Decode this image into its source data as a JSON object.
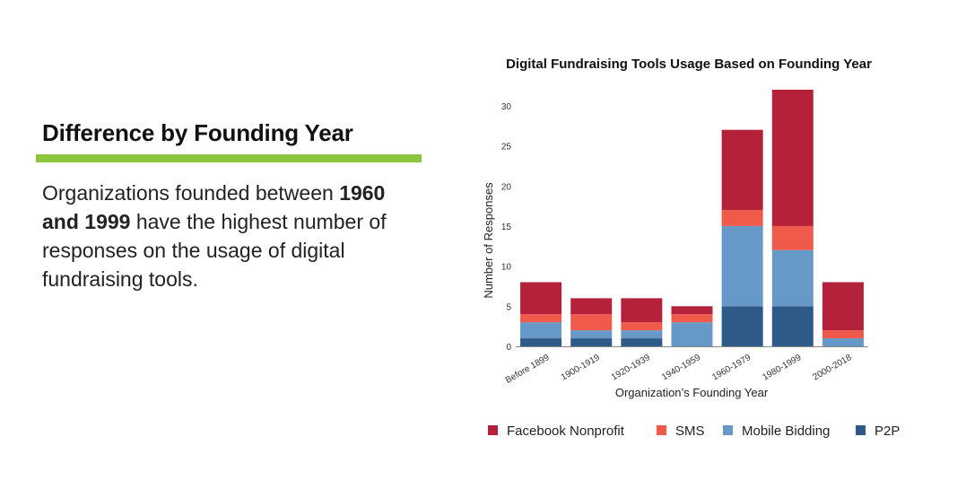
{
  "slide": {
    "heading": "Difference by Founding Year",
    "accent_color": "#8cc63f",
    "body_lead": "Organizations founded between ",
    "body_bold": "1960 and 1999",
    "body_tail": " have the highest number of responses on the usage of digital fundraising tools."
  },
  "chart_data": {
    "type": "bar",
    "stacked": true,
    "title": "Digital Fundraising Tools Usage Based on Founding Year",
    "xlabel": "Organization’s Founding Year",
    "ylabel": "Number of Responses",
    "ylim": [
      0,
      32
    ],
    "yticks": [
      0,
      5,
      10,
      15,
      20,
      25,
      30
    ],
    "categories": [
      "Before 1899",
      "1900-1919",
      "1920-1939",
      "1940-1959",
      "1960-1979",
      "1980-1999",
      "2000-2018"
    ],
    "series": [
      {
        "name": "P2P",
        "color": "#2e5a88",
        "values": [
          1,
          1,
          1,
          0,
          5,
          5,
          0
        ]
      },
      {
        "name": "Mobile Bidding",
        "color": "#6699c7",
        "values": [
          2,
          1,
          1,
          3,
          10,
          7,
          1
        ]
      },
      {
        "name": "SMS",
        "color": "#ef5a4b",
        "values": [
          1,
          2,
          1,
          1,
          2,
          3,
          1
        ]
      },
      {
        "name": "Facebook Nonprofit",
        "color": "#b5203a",
        "values": [
          4,
          2,
          3,
          1,
          10,
          17,
          6
        ]
      }
    ],
    "legend_order": [
      "Facebook Nonprofit",
      "SMS",
      "Mobile Bidding",
      "P2P"
    ],
    "legend_position": "bottom",
    "grid": false
  }
}
